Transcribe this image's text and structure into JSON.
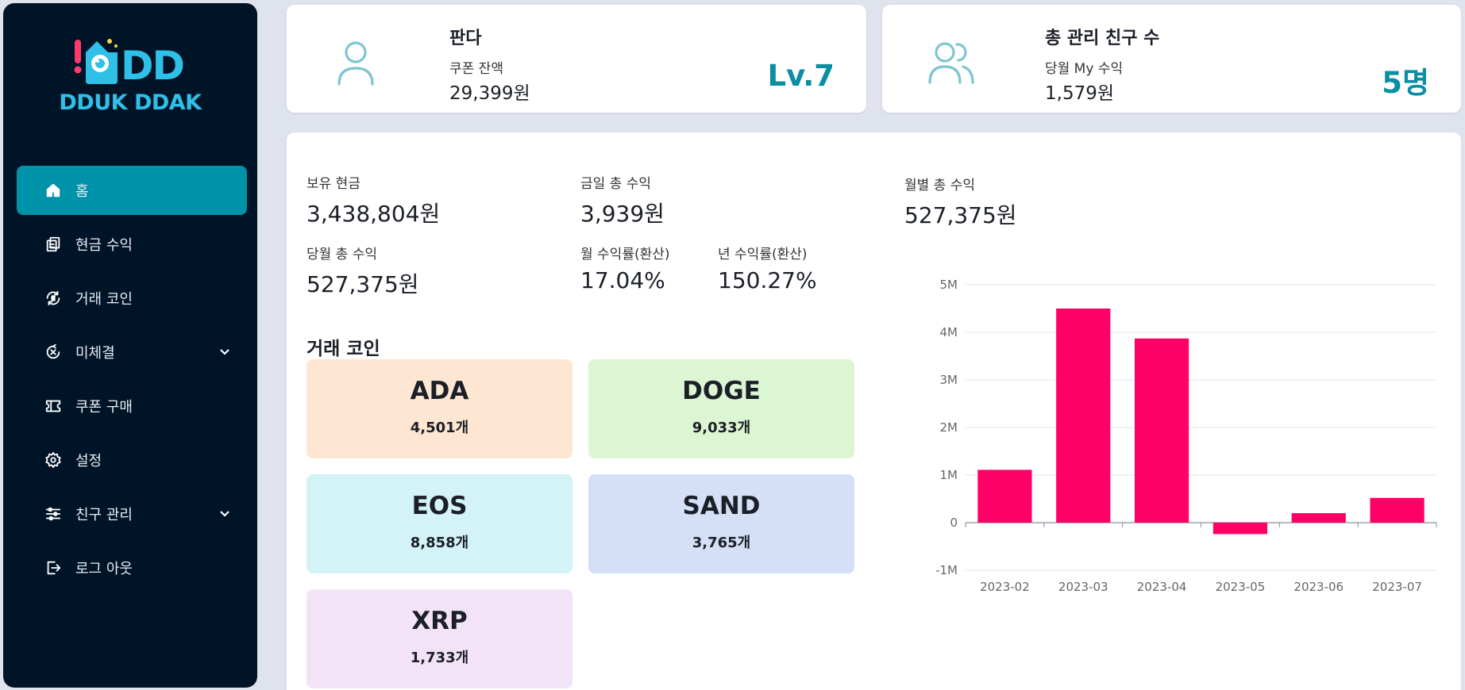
{
  "brand": {
    "logo_mark": "DD",
    "name": "DDUK DDAK"
  },
  "nav": [
    {
      "label": "홈",
      "icon": "home-icon",
      "active": true
    },
    {
      "label": "현금 수익",
      "icon": "money-icon"
    },
    {
      "label": "거래 코인",
      "icon": "coin-exchange-icon"
    },
    {
      "label": "미체결",
      "icon": "cancel-circle-icon",
      "expandable": true
    },
    {
      "label": "쿠폰 구매",
      "icon": "ticket-icon"
    },
    {
      "label": "설정",
      "icon": "gear-icon"
    },
    {
      "label": "친구 관리",
      "icon": "sliders-icon",
      "expandable": true
    },
    {
      "label": "로그 아웃",
      "icon": "logout-icon"
    }
  ],
  "user_card": {
    "name": "판다",
    "coupon_label": "쿠폰 잔액",
    "coupon_value": "29,399원",
    "level": "Lv.7"
  },
  "friends_card": {
    "title": "총 관리 친구 수",
    "income_label": "당월 My 수익",
    "income_value": "1,579원",
    "count": "5명"
  },
  "stats": {
    "cash": {
      "label": "보유 현금",
      "value": "3,438,804원"
    },
    "today": {
      "label": "금일 총 수익",
      "value": "3,939원"
    },
    "month": {
      "label": "당월 총 수익",
      "value": "527,375원"
    },
    "monthly_rate": {
      "label": "월 수익률(환산)",
      "value": "17.04%"
    },
    "yearly_rate": {
      "label": "년 수익률(환산)",
      "value": "150.27%"
    },
    "monthly_total": {
      "label": "월별 총 수익",
      "value": "527,375원"
    }
  },
  "coins_title": "거래 코인",
  "coins": [
    {
      "name": "ADA",
      "count": "4,501개",
      "color": "#fde7d3"
    },
    {
      "name": "DOGE",
      "count": "9,033개",
      "color": "#dcf5d3"
    },
    {
      "name": "EOS",
      "count": "8,858개",
      "color": "#d3f3f7"
    },
    {
      "name": "SAND",
      "count": "3,765개",
      "color": "#d5e0f7"
    },
    {
      "name": "XRP",
      "count": "1,733개",
      "color": "#f3e3f6"
    }
  ],
  "chart_data": {
    "type": "bar",
    "title": "",
    "xlabel": "",
    "ylabel": "",
    "categories": [
      "2023-02",
      "2023-03",
      "2023-04",
      "2023-05",
      "2023-06",
      "2023-07"
    ],
    "values": [
      1110000,
      4500000,
      3870000,
      -240000,
      200000,
      520000
    ],
    "ylim": [
      -1000000,
      5000000
    ],
    "yticks": [
      5000000,
      4000000,
      3000000,
      2000000,
      1000000,
      0,
      -1000000
    ],
    "ytick_labels": [
      "5M",
      "4M",
      "3M",
      "2M",
      "1M",
      "0",
      "-1M"
    ],
    "bar_color": "#ff0066",
    "grid": true
  }
}
